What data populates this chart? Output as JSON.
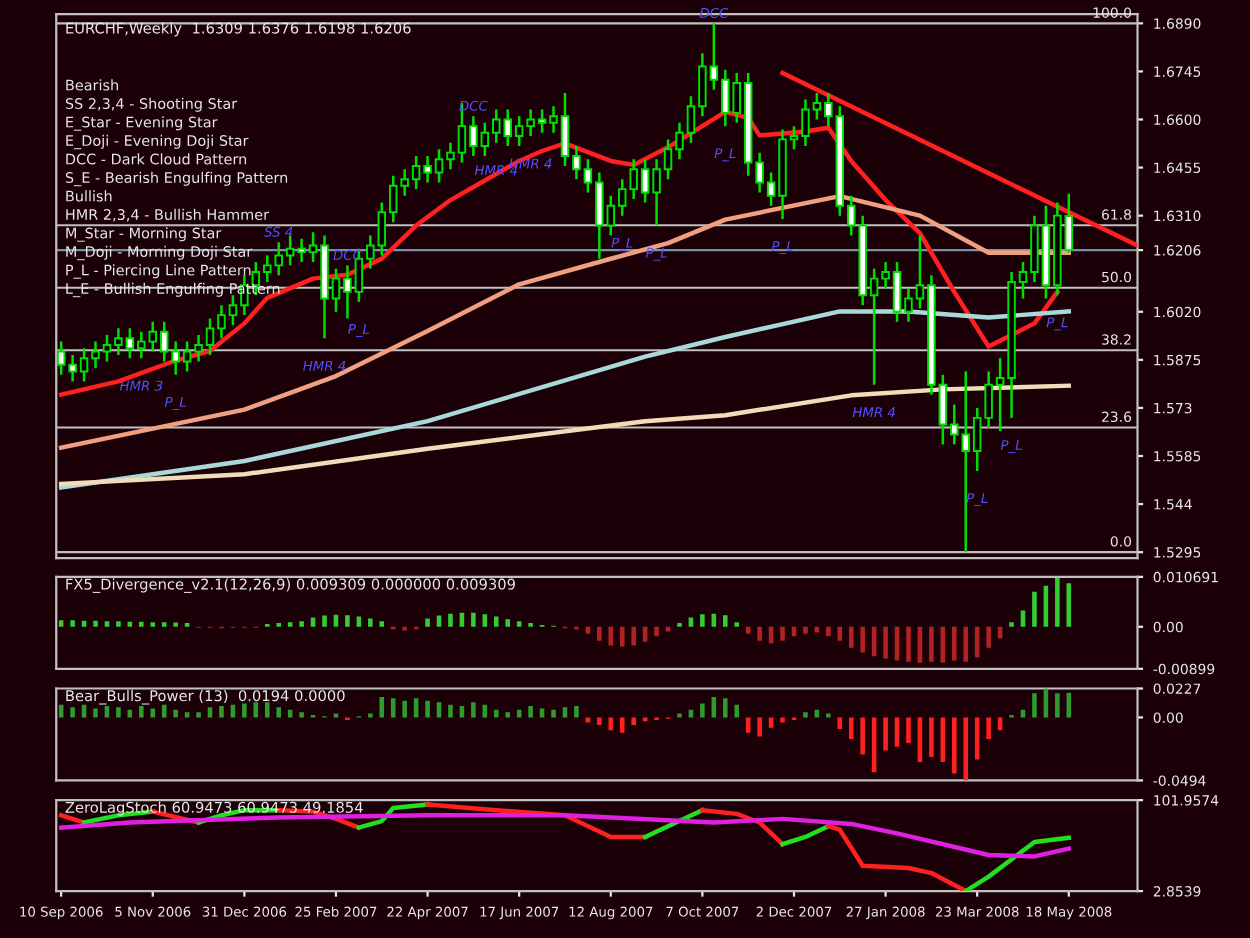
{
  "chart_data": [
    {
      "type": "candlestick",
      "title": "EURCHF,Weekly  1.6309 1.6376 1.6198 1.6206",
      "color": "#00e000",
      "x": [
        "2006-09-10",
        "2006-09-17",
        "2006-09-24",
        "2006-10-01",
        "2006-10-08",
        "2006-10-15",
        "2006-10-22",
        "2006-10-29",
        "2006-11-05",
        "2006-11-12",
        "2006-11-19",
        "2006-11-26",
        "2006-12-03",
        "2006-12-10",
        "2006-12-17",
        "2006-12-24",
        "2006-12-31",
        "2007-01-07",
        "2007-01-14",
        "2007-01-21",
        "2007-01-28",
        "2007-02-04",
        "2007-02-11",
        "2007-02-18",
        "2007-02-25",
        "2007-03-04",
        "2007-03-11",
        "2007-03-18",
        "2007-03-25",
        "2007-04-01",
        "2007-04-08",
        "2007-04-15",
        "2007-04-22",
        "2007-04-29",
        "2007-05-06",
        "2007-05-13",
        "2007-05-20",
        "2007-05-27",
        "2007-06-03",
        "2007-06-10",
        "2007-06-17",
        "2007-06-24",
        "2007-07-01",
        "2007-07-08",
        "2007-07-15",
        "2007-07-22",
        "2007-07-29",
        "2007-08-05",
        "2007-08-12",
        "2007-08-19",
        "2007-08-26",
        "2007-09-02",
        "2007-09-09",
        "2007-09-16",
        "2007-09-23",
        "2007-09-30",
        "2007-10-07",
        "2007-10-14",
        "2007-10-21",
        "2007-10-28",
        "2007-11-04",
        "2007-11-11",
        "2007-11-18",
        "2007-11-25",
        "2007-12-02",
        "2007-12-09",
        "2007-12-16",
        "2007-12-23",
        "2007-12-30",
        "2008-01-06",
        "2008-01-13",
        "2008-01-20",
        "2008-01-27",
        "2008-02-03",
        "2008-02-10",
        "2008-02-17",
        "2008-02-24",
        "2008-03-02",
        "2008-03-09",
        "2008-03-16",
        "2008-03-23",
        "2008-03-30",
        "2008-04-06",
        "2008-04-13",
        "2008-04-20",
        "2008-04-27",
        "2008-05-04",
        "2008-05-11",
        "2008-05-18"
      ],
      "ohlc": [
        [
          1.59,
          1.593,
          1.583,
          1.586
        ],
        [
          1.586,
          1.589,
          1.581,
          1.584
        ],
        [
          1.584,
          1.591,
          1.581,
          1.588
        ],
        [
          1.588,
          1.593,
          1.585,
          1.59
        ],
        [
          1.59,
          1.595,
          1.587,
          1.592
        ],
        [
          1.592,
          1.597,
          1.589,
          1.594
        ],
        [
          1.594,
          1.597,
          1.588,
          1.591
        ],
        [
          1.591,
          1.596,
          1.588,
          1.593
        ],
        [
          1.593,
          1.599,
          1.59,
          1.596
        ],
        [
          1.596,
          1.599,
          1.587,
          1.59
        ],
        [
          1.59,
          1.593,
          1.583,
          1.587
        ],
        [
          1.587,
          1.593,
          1.584,
          1.59
        ],
        [
          1.59,
          1.595,
          1.587,
          1.592
        ],
        [
          1.592,
          1.6,
          1.589,
          1.597
        ],
        [
          1.597,
          1.604,
          1.594,
          1.601
        ],
        [
          1.601,
          1.607,
          1.598,
          1.604
        ],
        [
          1.604,
          1.613,
          1.601,
          1.61
        ],
        [
          1.61,
          1.617,
          1.607,
          1.614
        ],
        [
          1.614,
          1.619,
          1.611,
          1.616
        ],
        [
          1.616,
          1.623,
          1.613,
          1.619
        ],
        [
          1.619,
          1.625,
          1.616,
          1.621
        ],
        [
          1.621,
          1.624,
          1.617,
          1.62
        ],
        [
          1.62,
          1.626,
          1.617,
          1.622
        ],
        [
          1.622,
          1.625,
          1.594,
          1.606
        ],
        [
          1.606,
          1.615,
          1.602,
          1.612
        ],
        [
          1.612,
          1.616,
          1.6,
          1.608
        ],
        [
          1.608,
          1.621,
          1.605,
          1.618
        ],
        [
          1.618,
          1.625,
          1.615,
          1.622
        ],
        [
          1.622,
          1.635,
          1.619,
          1.632
        ],
        [
          1.632,
          1.643,
          1.629,
          1.64
        ],
        [
          1.64,
          1.645,
          1.637,
          1.642
        ],
        [
          1.642,
          1.649,
          1.639,
          1.646
        ],
        [
          1.646,
          1.649,
          1.641,
          1.644
        ],
        [
          1.644,
          1.651,
          1.641,
          1.648
        ],
        [
          1.648,
          1.653,
          1.645,
          1.65
        ],
        [
          1.65,
          1.665,
          1.647,
          1.658
        ],
        [
          1.658,
          1.661,
          1.649,
          1.652
        ],
        [
          1.652,
          1.659,
          1.649,
          1.656
        ],
        [
          1.656,
          1.663,
          1.653,
          1.66
        ],
        [
          1.66,
          1.663,
          1.652,
          1.655
        ],
        [
          1.655,
          1.661,
          1.652,
          1.658
        ],
        [
          1.658,
          1.663,
          1.655,
          1.66
        ],
        [
          1.66,
          1.663,
          1.656,
          1.659
        ],
        [
          1.659,
          1.664,
          1.656,
          1.661
        ],
        [
          1.661,
          1.668,
          1.646,
          1.649
        ],
        [
          1.649,
          1.652,
          1.642,
          1.645
        ],
        [
          1.645,
          1.648,
          1.638,
          1.641
        ],
        [
          1.641,
          1.644,
          1.618,
          1.628
        ],
        [
          1.628,
          1.637,
          1.625,
          1.634
        ],
        [
          1.634,
          1.642,
          1.631,
          1.639
        ],
        [
          1.639,
          1.648,
          1.636,
          1.645
        ],
        [
          1.645,
          1.648,
          1.635,
          1.638
        ],
        [
          1.638,
          1.648,
          1.628,
          1.645
        ],
        [
          1.645,
          1.654,
          1.642,
          1.651
        ],
        [
          1.651,
          1.659,
          1.648,
          1.656
        ],
        [
          1.656,
          1.667,
          1.653,
          1.664
        ],
        [
          1.664,
          1.68,
          1.661,
          1.676
        ],
        [
          1.676,
          1.689,
          1.669,
          1.672
        ],
        [
          1.672,
          1.675,
          1.658,
          1.662
        ],
        [
          1.662,
          1.674,
          1.659,
          1.671
        ],
        [
          1.671,
          1.674,
          1.643,
          1.647
        ],
        [
          1.647,
          1.65,
          1.638,
          1.641
        ],
        [
          1.641,
          1.644,
          1.634,
          1.637
        ],
        [
          1.637,
          1.657,
          1.63,
          1.654
        ],
        [
          1.654,
          1.658,
          1.651,
          1.655
        ],
        [
          1.655,
          1.666,
          1.652,
          1.663
        ],
        [
          1.663,
          1.668,
          1.66,
          1.665
        ],
        [
          1.665,
          1.668,
          1.658,
          1.661
        ],
        [
          1.661,
          1.664,
          1.631,
          1.634
        ],
        [
          1.634,
          1.637,
          1.625,
          1.628
        ],
        [
          1.628,
          1.631,
          1.604,
          1.607
        ],
        [
          1.607,
          1.615,
          1.58,
          1.612
        ],
        [
          1.612,
          1.617,
          1.609,
          1.614
        ],
        [
          1.614,
          1.617,
          1.599,
          1.602
        ],
        [
          1.602,
          1.609,
          1.599,
          1.606
        ],
        [
          1.606,
          1.625,
          1.603,
          1.61
        ],
        [
          1.61,
          1.613,
          1.577,
          1.58
        ],
        [
          1.58,
          1.583,
          1.562,
          1.568
        ],
        [
          1.568,
          1.574,
          1.562,
          1.565
        ],
        [
          1.565,
          1.584,
          1.5295,
          1.56
        ],
        [
          1.56,
          1.573,
          1.554,
          1.57
        ],
        [
          1.57,
          1.584,
          1.567,
          1.58
        ],
        [
          1.58,
          1.588,
          1.566,
          1.582
        ],
        [
          1.582,
          1.614,
          1.57,
          1.611
        ],
        [
          1.611,
          1.617,
          1.606,
          1.614
        ],
        [
          1.614,
          1.631,
          1.611,
          1.628
        ],
        [
          1.628,
          1.634,
          1.606,
          1.61
        ],
        [
          1.61,
          1.635,
          1.607,
          1.631
        ],
        [
          1.6309,
          1.6376,
          1.6198,
          1.6206
        ]
      ],
      "colors": [
        "#ffffff",
        "#ffffff",
        "#000000",
        "#000000",
        "#000000",
        "#000000",
        "#ffffff",
        "#000000",
        "#000000",
        "#ffffff",
        "#ffffff",
        "#000000",
        "#000000",
        "#000000",
        "#000000",
        "#000000",
        "#000000",
        "#000000",
        "#000000",
        "#000000",
        "#000000",
        "#ffffff",
        "#000000",
        "#ffffff",
        "#000000",
        "#ffffff",
        "#000000",
        "#000000",
        "#000000",
        "#000000",
        "#000000",
        "#000000",
        "#ffffff",
        "#000000",
        "#000000",
        "#000000",
        "#ffffff",
        "#000000",
        "#000000",
        "#ffffff",
        "#000000",
        "#000000",
        "#ffffff",
        "#000000",
        "#ffffff",
        "#ffffff",
        "#ffffff",
        "#ffffff",
        "#000000",
        "#000000",
        "#000000",
        "#ffffff",
        "#000000",
        "#000000",
        "#000000",
        "#000000",
        "#000000",
        "#ffffff",
        "#ffffff",
        "#000000",
        "#ffffff",
        "#ffffff",
        "#ffffff",
        "#000000",
        "#000000",
        "#000000",
        "#000000",
        "#ffffff",
        "#ffffff",
        "#ffffff",
        "#ffffff",
        "#000000",
        "#000000",
        "#ffffff",
        "#000000",
        "#000000",
        "#ffffff",
        "#ffffff",
        "#ffffff",
        "#ffffff",
        "#000000",
        "#000000",
        "#000000",
        "#000000",
        "#000000",
        "#000000",
        "#ffffff",
        "#000000",
        "#ffffff"
      ],
      "series": [
        {
          "type": "line",
          "color": "#ff2020",
          "x": [
            "2006-09-10",
            "2006-10-15",
            "2006-11-19",
            "2006-12-10",
            "2006-12-31",
            "2007-01-14",
            "2007-02-11",
            "2007-03-04",
            "2007-03-25",
            "2007-04-15",
            "2007-05-06",
            "2007-05-27",
            "2007-06-17",
            "2007-07-01",
            "2007-07-15",
            "2007-08-12",
            "2007-08-26",
            "2007-09-16",
            "2007-10-21",
            "2007-11-04",
            "2007-11-11",
            "2007-12-09",
            "2007-12-23",
            "2008-01-06",
            "2008-01-27",
            "2008-02-17",
            "2008-03-09",
            "2008-03-30",
            "2008-04-27",
            "2008-05-11"
          ],
          "values": [
            1.577,
            1.581,
            1.5873,
            1.5902,
            1.5985,
            1.6062,
            1.612,
            1.6132,
            1.618,
            1.628,
            1.6357,
            1.6416,
            1.6475,
            1.6505,
            1.6528,
            1.6475,
            1.6463,
            1.6516,
            1.6623,
            1.6605,
            1.6552,
            1.6564,
            1.6575,
            1.6475,
            1.6357,
            1.6257,
            1.608,
            1.5915,
            1.5985,
            1.608
          ]
        },
        {
          "type": "line",
          "color": "#f0a080",
          "x": [
            "2006-09-10",
            "2006-12-31",
            "2007-02-25",
            "2007-04-22",
            "2007-06-17",
            "2007-08-12",
            "2007-09-16",
            "2007-10-21",
            "2007-12-30",
            "2008-02-17",
            "2008-03-30",
            "2008-05-18"
          ],
          "values": [
            1.561,
            1.5725,
            1.5826,
            1.5962,
            1.6103,
            1.618,
            1.6227,
            1.6298,
            1.6369,
            1.631,
            1.6198,
            1.6198
          ]
        },
        {
          "type": "line",
          "color": "#a8d8d8",
          "x": [
            "2006-09-10",
            "2006-12-31",
            "2007-04-22",
            "2007-09-02",
            "2007-10-21",
            "2007-12-30",
            "2008-02-10",
            "2008-03-30",
            "2008-05-18"
          ],
          "values": [
            1.549,
            1.557,
            1.569,
            1.5885,
            1.5944,
            1.6021,
            1.6021,
            1.6003,
            1.6021
          ]
        },
        {
          "type": "line",
          "color": "#f0dcb8",
          "x": [
            "2006-09-10",
            "2006-12-31",
            "2007-04-22",
            "2007-09-02",
            "2007-10-21",
            "2008-01-06",
            "2008-03-02",
            "2008-05-18"
          ],
          "values": [
            1.5501,
            1.553,
            1.5607,
            1.569,
            1.5708,
            1.5768,
            1.5786,
            1.5797
          ]
        },
        {
          "type": "line",
          "color": "#ff2020",
          "x": [
            "2007-11-25",
            "2008-06-29"
          ],
          "values": [
            1.674,
            1.622
          ]
        }
      ],
      "ref_lines": [
        {
          "axis": "y",
          "value": 1.689,
          "color": "#c0c0c0"
        },
        {
          "axis": "y",
          "value": 1.6281,
          "color": "#c0c0c0"
        },
        {
          "axis": "y",
          "value": 1.60925,
          "color": "#c0c0c0"
        },
        {
          "axis": "y",
          "value": 1.5904,
          "color": "#c0c0c0"
        },
        {
          "axis": "y",
          "value": 1.5671,
          "color": "#c0c0c0"
        },
        {
          "axis": "y",
          "value": 1.5295,
          "color": "#c0c0c0"
        },
        {
          "axis": "y",
          "value": 1.6206,
          "color": "#7890a8"
        }
      ],
      "annotations": [
        "Bearish",
        "SS 2,3,4 - Shooting Star",
        "E_Star - Evening Star",
        "E_Doji - Evening Doji Star",
        "DCC - Dark Cloud Pattern",
        "S_E - Bearish Engulfing Pattern",
        "Bullish",
        "HMR 2,3,4 - Bullish Hammer",
        "M_Star - Morning Star",
        "M_Doji - Morning Doji Star",
        "P_L - Piercing Line Pattern",
        "L_E - Bullish Engulfing Pattern",
        {
          "text": "HMR 3",
          "x": "2006-10-29",
          "y": 1.588
        },
        {
          "text": "P_L",
          "x": "2006-11-19",
          "y": 1.583
        },
        {
          "text": "SS 4",
          "x": "2007-01-21",
          "y": 1.623
        },
        {
          "text": "DCC",
          "x": "2007-03-04",
          "y": 1.616
        },
        {
          "text": "P_L",
          "x": "2007-03-11",
          "y": 1.605
        },
        {
          "text": "HMR 4",
          "x": "2007-02-18",
          "y": 1.594
        },
        {
          "text": "DCC",
          "x": "2007-05-20",
          "y": 1.661
        },
        {
          "text": "HMR 4",
          "x": "2007-06-03",
          "y": 1.653
        },
        {
          "text": "HMR 4",
          "x": "2007-06-24",
          "y": 1.655
        },
        {
          "text": "P_L",
          "x": "2007-08-19",
          "y": 1.631
        },
        {
          "text": "P_L",
          "x": "2007-09-09",
          "y": 1.628
        },
        {
          "text": "DCC",
          "x": "2007-10-14",
          "y": 1.689
        },
        {
          "text": "P_L",
          "x": "2007-10-21",
          "y": 1.658
        },
        {
          "text": "P_L",
          "x": "2007-11-25",
          "y": 1.63
        },
        {
          "text": "HMR 4",
          "x": "2008-01-20",
          "y": 1.58
        },
        {
          "text": "P_L",
          "x": "2008-03-23",
          "y": 1.554
        },
        {
          "text": "P_L",
          "x": "2008-04-13",
          "y": 1.57
        },
        {
          "text": "P_L",
          "x": "2008-05-11",
          "y": 1.607
        },
        {
          "text": "100.0",
          "x": "2008-06-29",
          "y": 1.689
        },
        {
          "text": "61.8",
          "x": "2008-06-29",
          "y": 1.6281
        },
        {
          "text": "50.0",
          "x": "2008-06-29",
          "y": 1.60925
        },
        {
          "text": "38.2",
          "x": "2008-06-29",
          "y": 1.5904
        },
        {
          "text": "23.6",
          "x": "2008-06-29",
          "y": 1.5671
        },
        {
          "text": "0.0",
          "x": "2008-06-29",
          "y": 1.5295
        }
      ],
      "xlim": [
        "2006-09-07",
        "2008-06-29"
      ],
      "ylim": [
        1.5277,
        1.6918
      ],
      "yticks": [
        {
          "value": 1.689,
          "label": "1.6890"
        },
        1.6745,
        {
          "value": 1.66,
          "label": "1.6600"
        },
        1.6455,
        {
          "value": 1.631,
          "label": "1.6310"
        },
        1.6206,
        {
          "value": 1.602,
          "label": "1.6020"
        },
        1.5875,
        1.573,
        1.5585,
        1.544,
        1.5295
      ],
      "tick_labels": "y"
    },
    {
      "type": "bar",
      "title": "FX5_Divergence_v2.1(12,26,9) 0.009309 0.000000 0.009309",
      "x": [
        "2006-09-10",
        "2006-09-17",
        "2006-09-24",
        "2006-10-01",
        "2006-10-08",
        "2006-10-15",
        "2006-10-22",
        "2006-10-29",
        "2006-11-05",
        "2006-11-12",
        "2006-11-19",
        "2006-11-26",
        "2006-12-03",
        "2006-12-10",
        "2006-12-17",
        "2006-12-24",
        "2006-12-31",
        "2007-01-07",
        "2007-01-14",
        "2007-01-21",
        "2007-01-28",
        "2007-02-04",
        "2007-02-11",
        "2007-02-18",
        "2007-02-25",
        "2007-03-04",
        "2007-03-11",
        "2007-03-18",
        "2007-03-25",
        "2007-04-01",
        "2007-04-08",
        "2007-04-15",
        "2007-04-22",
        "2007-04-29",
        "2007-05-06",
        "2007-05-13",
        "2007-05-20",
        "2007-05-27",
        "2007-06-03",
        "2007-06-10",
        "2007-06-17",
        "2007-06-24",
        "2007-07-01",
        "2007-07-08",
        "2007-07-15",
        "2007-07-22",
        "2007-07-29",
        "2007-08-05",
        "2007-08-12",
        "2007-08-19",
        "2007-08-26",
        "2007-09-02",
        "2007-09-09",
        "2007-09-16",
        "2007-09-23",
        "2007-09-30",
        "2007-10-07",
        "2007-10-14",
        "2007-10-21",
        "2007-10-28",
        "2007-11-04",
        "2007-11-11",
        "2007-11-18",
        "2007-11-25",
        "2007-12-02",
        "2007-12-09",
        "2007-12-16",
        "2007-12-23",
        "2007-12-30",
        "2008-01-06",
        "2008-01-13",
        "2008-01-20",
        "2008-01-27",
        "2008-02-03",
        "2008-02-10",
        "2008-02-17",
        "2008-02-24",
        "2008-03-02",
        "2008-03-09",
        "2008-03-16",
        "2008-03-23",
        "2008-03-30",
        "2008-04-06",
        "2008-04-13",
        "2008-04-20",
        "2008-04-27",
        "2008-05-04",
        "2008-05-11",
        "2008-05-18"
      ],
      "values": [
        0.0014,
        0.0014,
        0.0013,
        0.0013,
        0.0012,
        0.0012,
        0.0011,
        0.0011,
        0.001,
        0.001,
        0.0009,
        0.0008,
        -0.0002,
        -0.0002,
        -0.0003,
        -0.0002,
        -0.0002,
        -0.0002,
        0.0006,
        0.0008,
        0.001,
        0.0012,
        0.002,
        0.0024,
        0.0026,
        0.0025,
        0.0022,
        0.0018,
        0.0012,
        -0.0005,
        -0.0008,
        -0.0005,
        0.0018,
        0.0024,
        0.0028,
        0.003,
        0.003,
        0.0027,
        0.0022,
        0.0016,
        0.0012,
        0.0008,
        0.0004,
        0.0002,
        -0.0003,
        -0.0006,
        -0.0015,
        -0.003,
        -0.004,
        -0.0042,
        -0.004,
        -0.0032,
        -0.002,
        -0.001,
        0.0008,
        0.002,
        0.0027,
        0.0028,
        0.0025,
        0.001,
        -0.0015,
        -0.003,
        -0.0035,
        -0.003,
        -0.002,
        -0.0015,
        -0.0012,
        -0.002,
        -0.003,
        -0.0045,
        -0.0055,
        -0.0063,
        -0.0068,
        -0.0072,
        -0.0075,
        -0.0077,
        -0.0075,
        -0.0077,
        -0.0072,
        -0.0075,
        -0.0065,
        -0.0045,
        -0.0025,
        0.001,
        0.0035,
        0.0075,
        0.0088,
        0.0105,
        0.009309
      ],
      "colors": [
        "#33cc33",
        "#33cc33",
        "#33cc33",
        "#33cc33",
        "#33cc33",
        "#33cc33",
        "#33cc33",
        "#33cc33",
        "#33cc33",
        "#33cc33",
        "#33cc33",
        "#33cc33",
        "#b22222",
        "#b22222",
        "#b22222",
        "#b22222",
        "#b22222",
        "#b22222",
        "#33cc33",
        "#33cc33",
        "#33cc33",
        "#33cc33",
        "#33cc33",
        "#33cc33",
        "#33cc33",
        "#33cc33",
        "#33cc33",
        "#33cc33",
        "#33cc33",
        "#b22222",
        "#b22222",
        "#b22222",
        "#33cc33",
        "#33cc33",
        "#33cc33",
        "#33cc33",
        "#33cc33",
        "#33cc33",
        "#33cc33",
        "#33cc33",
        "#33cc33",
        "#33cc33",
        "#33cc33",
        "#33cc33",
        "#b22222",
        "#b22222",
        "#b22222",
        "#b22222",
        "#b22222",
        "#b22222",
        "#b22222",
        "#b22222",
        "#b22222",
        "#b22222",
        "#33cc33",
        "#33cc33",
        "#33cc33",
        "#33cc33",
        "#33cc33",
        "#33cc33",
        "#b22222",
        "#b22222",
        "#b22222",
        "#b22222",
        "#b22222",
        "#b22222",
        "#b22222",
        "#b22222",
        "#b22222",
        "#b22222",
        "#b22222",
        "#b22222",
        "#b22222",
        "#b22222",
        "#b22222",
        "#b22222",
        "#b22222",
        "#b22222",
        "#b22222",
        "#b22222",
        "#b22222",
        "#b22222",
        "#b22222",
        "#33cc33",
        "#33cc33",
        "#33cc33",
        "#33cc33",
        "#33cc33",
        "#33cc33"
      ],
      "xlim": [
        "2006-09-07",
        "2008-06-29"
      ],
      "ylim": [
        -0.00899,
        0.010691
      ],
      "yticks": [
        -0.00899,
        {
          "value": 0,
          "label": "0.00"
        },
        0.010691
      ],
      "tick_labels": "y"
    },
    {
      "type": "bar",
      "title": "Bear_Bulls_Power (13)  0.0194 0.0000",
      "x": [
        "2006-09-10",
        "2006-09-17",
        "2006-09-24",
        "2006-10-01",
        "2006-10-08",
        "2006-10-15",
        "2006-10-22",
        "2006-10-29",
        "2006-11-05",
        "2006-11-12",
        "2006-11-19",
        "2006-11-26",
        "2006-12-03",
        "2006-12-10",
        "2006-12-17",
        "2006-12-24",
        "2006-12-31",
        "2007-01-07",
        "2007-01-14",
        "2007-01-21",
        "2007-01-28",
        "2007-02-04",
        "2007-02-11",
        "2007-02-18",
        "2007-02-25",
        "2007-03-04",
        "2007-03-11",
        "2007-03-18",
        "2007-03-25",
        "2007-04-01",
        "2007-04-08",
        "2007-04-15",
        "2007-04-22",
        "2007-04-29",
        "2007-05-06",
        "2007-05-13",
        "2007-05-20",
        "2007-05-27",
        "2007-06-03",
        "2007-06-10",
        "2007-06-17",
        "2007-06-24",
        "2007-07-01",
        "2007-07-08",
        "2007-07-15",
        "2007-07-22",
        "2007-07-29",
        "2007-08-05",
        "2007-08-12",
        "2007-08-19",
        "2007-08-26",
        "2007-09-02",
        "2007-09-09",
        "2007-09-16",
        "2007-09-23",
        "2007-09-30",
        "2007-10-07",
        "2007-10-14",
        "2007-10-21",
        "2007-10-28",
        "2007-11-04",
        "2007-11-11",
        "2007-11-18",
        "2007-11-25",
        "2007-12-02",
        "2007-12-09",
        "2007-12-16",
        "2007-12-23",
        "2007-12-30",
        "2008-01-06",
        "2008-01-13",
        "2008-01-20",
        "2008-01-27",
        "2008-02-03",
        "2008-02-10",
        "2008-02-17",
        "2008-02-24",
        "2008-03-02",
        "2008-03-09",
        "2008-03-16",
        "2008-03-23",
        "2008-03-30",
        "2008-04-06",
        "2008-04-13",
        "2008-04-20",
        "2008-04-27",
        "2008-05-04",
        "2008-05-11",
        "2008-05-18"
      ],
      "values": [
        0.01,
        0.008,
        0.01,
        0.007,
        0.009,
        0.008,
        0.006,
        0.009,
        0.007,
        0.01,
        0.006,
        0.004,
        0.004,
        0.008,
        0.009,
        0.01,
        0.011,
        0.012,
        0.012,
        0.008,
        0.006,
        0.004,
        0.002,
        0.001,
        0.003,
        -0.002,
        0.001,
        0.003,
        0.016,
        0.015,
        0.013,
        0.015,
        0.013,
        0.012,
        0.01,
        0.009,
        0.012,
        0.01,
        0.006,
        0.004,
        0.006,
        0.009,
        0.007,
        0.006,
        0.008,
        0.009,
        -0.004,
        -0.006,
        -0.01,
        -0.012,
        -0.006,
        -0.003,
        -0.002,
        -0.001,
        0.003,
        0.006,
        0.011,
        0.016,
        0.015,
        0.01,
        -0.012,
        -0.015,
        -0.008,
        -0.004,
        -0.002,
        0.004,
        0.006,
        0.003,
        -0.009,
        -0.017,
        -0.029,
        -0.043,
        -0.026,
        -0.023,
        -0.02,
        -0.035,
        -0.031,
        -0.035,
        -0.044,
        -0.0494,
        -0.033,
        -0.017,
        -0.01,
        0.002,
        0.006,
        0.019,
        0.0227,
        0.019,
        0.0194
      ],
      "colors": [
        "#2e9b2e",
        "#2e9b2e",
        "#2e9b2e",
        "#2e9b2e",
        "#2e9b2e",
        "#2e9b2e",
        "#2e9b2e",
        "#2e9b2e",
        "#2e9b2e",
        "#2e9b2e",
        "#2e9b2e",
        "#2e9b2e",
        "#2e9b2e",
        "#2e9b2e",
        "#2e9b2e",
        "#2e9b2e",
        "#2e9b2e",
        "#2e9b2e",
        "#2e9b2e",
        "#2e9b2e",
        "#2e9b2e",
        "#2e9b2e",
        "#2e9b2e",
        "#2e9b2e",
        "#2e9b2e",
        "#ff2020",
        "#2e9b2e",
        "#2e9b2e",
        "#2e9b2e",
        "#2e9b2e",
        "#2e9b2e",
        "#2e9b2e",
        "#2e9b2e",
        "#2e9b2e",
        "#2e9b2e",
        "#2e9b2e",
        "#2e9b2e",
        "#2e9b2e",
        "#2e9b2e",
        "#2e9b2e",
        "#2e9b2e",
        "#2e9b2e",
        "#2e9b2e",
        "#2e9b2e",
        "#2e9b2e",
        "#2e9b2e",
        "#ff2020",
        "#ff2020",
        "#ff2020",
        "#ff2020",
        "#ff2020",
        "#ff2020",
        "#ff2020",
        "#ff2020",
        "#2e9b2e",
        "#2e9b2e",
        "#2e9b2e",
        "#2e9b2e",
        "#2e9b2e",
        "#2e9b2e",
        "#ff2020",
        "#ff2020",
        "#ff2020",
        "#ff2020",
        "#ff2020",
        "#2e9b2e",
        "#2e9b2e",
        "#2e9b2e",
        "#ff2020",
        "#ff2020",
        "#ff2020",
        "#ff2020",
        "#ff2020",
        "#ff2020",
        "#ff2020",
        "#ff2020",
        "#ff2020",
        "#ff2020",
        "#ff2020",
        "#ff2020",
        "#ff2020",
        "#ff2020",
        "#ff2020",
        "#2e9b2e",
        "#2e9b2e",
        "#2e9b2e",
        "#2e9b2e",
        "#2e9b2e",
        "#2e9b2e"
      ],
      "xlim": [
        "2006-09-07",
        "2008-06-29"
      ],
      "ylim": [
        -0.0494,
        0.0227
      ],
      "yticks": [
        -0.0494,
        {
          "value": 0,
          "label": "0.00"
        },
        0.0227
      ],
      "tick_labels": "y"
    },
    {
      "type": "line",
      "title": "ZeroLagStoch 60.9473 60.9473 49.1854",
      "series": [
        {
          "color": "#ff2020",
          "x": [
            "2006-09-10",
            "2006-09-24"
          ],
          "values": [
            85.4,
            77.6
          ]
        },
        {
          "color": "#20e020",
          "x": [
            "2006-09-24",
            "2006-10-15",
            "2006-11-05"
          ],
          "values": [
            77.6,
            85.4,
            89.4
          ]
        },
        {
          "color": "#ff2020",
          "x": [
            "2006-11-05",
            "2006-12-03"
          ],
          "values": [
            89.4,
            77.6
          ]
        },
        {
          "color": "#20e020",
          "x": [
            "2006-12-03",
            "2006-12-17",
            "2006-12-31",
            "2007-01-21"
          ],
          "values": [
            77.6,
            85.4,
            91,
            91
          ]
        },
        {
          "color": "#ff2020",
          "x": [
            "2007-01-21",
            "2007-02-11",
            "2007-02-25",
            "2007-03-11"
          ],
          "values": [
            91,
            89.4,
            81.5,
            72
          ]
        },
        {
          "color": "#20e020",
          "x": [
            "2007-03-11",
            "2007-03-25",
            "2007-04-01",
            "2007-04-22"
          ],
          "values": [
            72,
            79.1,
            93.3,
            97.2
          ]
        },
        {
          "color": "#ff2020",
          "x": [
            "2007-04-22",
            "2007-06-03",
            "2007-07-15",
            "2007-08-12",
            "2007-09-02"
          ],
          "values": [
            97.2,
            91,
            85.4,
            61.8,
            61.8
          ]
        },
        {
          "color": "#20e020",
          "x": [
            "2007-09-02",
            "2007-09-16",
            "2007-10-07"
          ],
          "values": [
            61.8,
            73.6,
            91
          ]
        },
        {
          "color": "#ff2020",
          "x": [
            "2007-10-07",
            "2007-10-28",
            "2007-11-11",
            "2007-11-25"
          ],
          "values": [
            91,
            87,
            77.6,
            54
          ]
        },
        {
          "color": "#20e020",
          "x": [
            "2007-11-25",
            "2007-12-09",
            "2007-12-23"
          ],
          "values": [
            54,
            61.8,
            73.6
          ]
        },
        {
          "color": "#ff2020",
          "x": [
            "2007-12-23",
            "2007-12-30",
            "2008-01-13",
            "2008-02-10",
            "2008-02-24",
            "2008-03-16"
          ],
          "values": [
            73.6,
            69.7,
            30.4,
            28,
            22.5,
            2.9
          ]
        },
        {
          "color": "#20e020",
          "x": [
            "2008-03-16",
            "2008-03-30",
            "2008-04-27",
            "2008-05-18"
          ],
          "values": [
            2.9,
            18.6,
            56.3,
            60.9473
          ]
        },
        {
          "color": "#e020e0",
          "x": [
            "2006-09-10",
            "2006-10-22",
            "2007-01-21",
            "2007-04-22",
            "2007-07-15",
            "2007-10-14",
            "2007-11-25",
            "2008-01-06",
            "2008-02-03",
            "2008-03-30",
            "2008-04-27",
            "2008-05-18"
          ],
          "values": [
            72,
            77.6,
            83.1,
            85.4,
            85.4,
            77.6,
            81.5,
            76,
            65.8,
            42.2,
            40.6,
            49.1854
          ]
        }
      ],
      "xlim": [
        "2006-09-07",
        "2008-06-29"
      ],
      "xticks": [
        {
          "value": "2006-09-10",
          "label": "10 Sep 2006"
        },
        {
          "value": "2006-11-05",
          "label": "5 Nov 2006"
        },
        {
          "value": "2006-12-31",
          "label": "31 Dec 2006"
        },
        {
          "value": "2007-02-25",
          "label": "25 Feb 2007"
        },
        {
          "value": "2007-04-22",
          "label": "22 Apr 2007"
        },
        {
          "value": "2007-06-17",
          "label": "17 Jun 2007"
        },
        {
          "value": "2007-08-12",
          "label": "12 Aug 2007"
        },
        {
          "value": "2007-10-07",
          "label": "7 Oct 2007"
        },
        {
          "value": "2007-12-02",
          "label": "2 Dec 2007"
        },
        {
          "value": "2008-01-27",
          "label": "27 Jan 2008"
        },
        {
          "value": "2008-03-23",
          "label": "23 Mar 2008"
        },
        {
          "value": "2008-05-18",
          "label": "18 May 2008"
        }
      ],
      "ylim": [
        2.8539,
        101.9574
      ],
      "yticks": [
        2.8539,
        101.9574
      ]
    }
  ]
}
